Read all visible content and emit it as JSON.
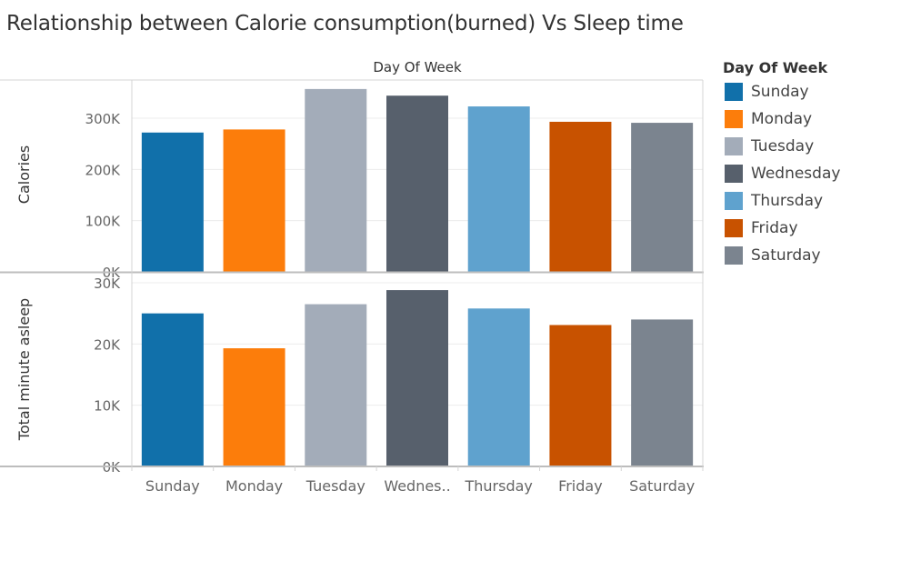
{
  "title": "Relationship between Calorie consumption(burned) Vs Sleep time",
  "legend": {
    "title": "Day Of Week",
    "items": [
      {
        "label": "Sunday",
        "color": "#1170aa"
      },
      {
        "label": "Monday",
        "color": "#fc7d0b"
      },
      {
        "label": "Tuesday",
        "color": "#a3acb9"
      },
      {
        "label": "Wednesday",
        "color": "#57606c"
      },
      {
        "label": "Thursday",
        "color": "#5fa2ce"
      },
      {
        "label": "Friday",
        "color": "#c85200"
      },
      {
        "label": "Saturday",
        "color": "#7b848f"
      }
    ]
  },
  "chart_data": {
    "type": "bar",
    "column_header": "Day Of Week",
    "categories": [
      "Sunday",
      "Monday",
      "Tuesday",
      "Wednes..",
      "Thursday",
      "Friday",
      "Saturday"
    ],
    "colors": [
      "#1170aa",
      "#fc7d0b",
      "#a3acb9",
      "#57606c",
      "#5fa2ce",
      "#c85200",
      "#7b848f"
    ],
    "panels": [
      {
        "ylabel": "Calories",
        "ylim": [
          0,
          380000
        ],
        "ticks": [
          0,
          100000,
          200000,
          300000
        ],
        "tick_labels": [
          "0K",
          "100K",
          "200K",
          "300K"
        ],
        "values": [
          272000,
          278000,
          357000,
          344000,
          323000,
          293000,
          291000
        ]
      },
      {
        "ylabel": "Total minute asleep",
        "ylim": [
          0,
          30000
        ],
        "ticks": [
          0,
          10000,
          20000,
          30000
        ],
        "tick_labels": [
          "0K",
          "10K",
          "20K",
          "30K"
        ],
        "values": [
          25000,
          19300,
          26500,
          28800,
          25800,
          23100,
          24000
        ]
      }
    ],
    "grid": true,
    "legend_position": "right"
  }
}
